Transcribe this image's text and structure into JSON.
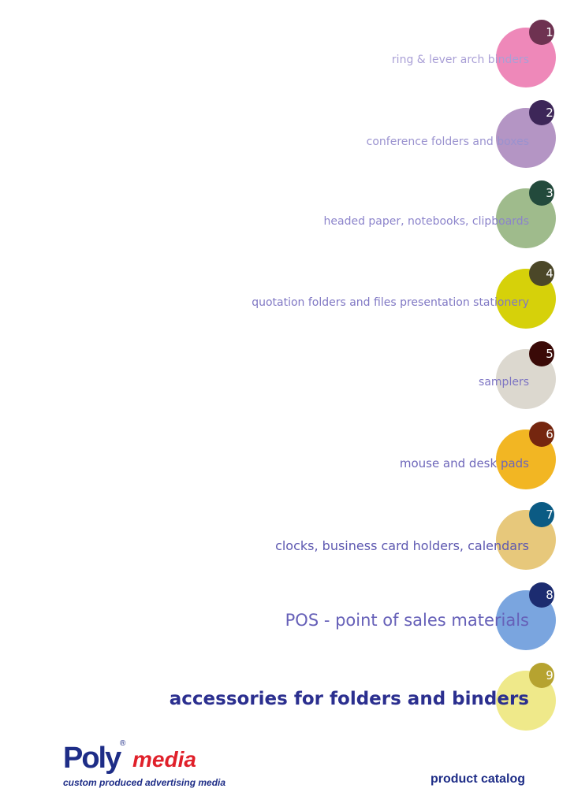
{
  "colors": {
    "accent_text": "#8f87c9",
    "dark_navy": "#1e2d87",
    "brand_red": "#e0202a"
  },
  "categories": [
    {
      "number": "1",
      "label": "ring & lever arch binders",
      "circle_color": "#ee88b9",
      "badge_color": "#6e3251"
    },
    {
      "number": "2",
      "label": "conference folders and boxes",
      "circle_color": "#b495c4",
      "badge_color": "#3d2658"
    },
    {
      "number": "3",
      "label": "headed paper, notebooks, clipboards",
      "circle_color": "#9fbb8c",
      "badge_color": "#234a3c"
    },
    {
      "number": "4",
      "label": "quotation folders and files presentation stationery",
      "circle_color": "#d6d10a",
      "badge_color": "#4b4728"
    },
    {
      "number": "5",
      "label": "samplers",
      "circle_color": "#dcd8cf",
      "badge_color": "#3a0a07"
    },
    {
      "number": "6",
      "label": "mouse and desk pads",
      "circle_color": "#f2b623",
      "badge_color": "#75260f"
    },
    {
      "number": "7",
      "label": "clocks, business card holders, calendars",
      "circle_color": "#e7c87b",
      "badge_color": "#0b5b84"
    },
    {
      "number": "8",
      "label": "POS - point of sales materials",
      "circle_color": "#7aa5df",
      "badge_color": "#1c2c70"
    },
    {
      "number": "9",
      "label": "accessories for folders and binders",
      "circle_color": "#efe98a",
      "badge_color": "#b6a330"
    }
  ],
  "footer": {
    "logo_poly": "Poly",
    "logo_reg": "®",
    "logo_media": "media",
    "tagline": "custom produced advertising media",
    "catalog_label": "product catalog"
  }
}
